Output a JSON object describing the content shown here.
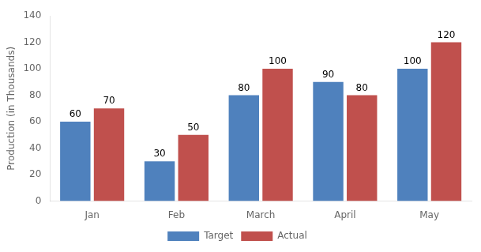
{
  "chart_data": {
    "type": "bar",
    "categories": [
      "Jan",
      "Feb",
      "March",
      "April",
      "May"
    ],
    "series": [
      {
        "name": "Target",
        "color": "#4F81BD",
        "values": [
          60,
          30,
          80,
          90,
          100
        ]
      },
      {
        "name": "Actual",
        "color": "#C0504D",
        "values": [
          70,
          50,
          100,
          80,
          120
        ]
      }
    ],
    "ylabel": "Production (in Thousands)",
    "ylim": [
      0,
      140
    ],
    "yticks": [
      0,
      20,
      40,
      60,
      80,
      100,
      120,
      140
    ],
    "grid": false,
    "legend": "bottom",
    "data_labels": true
  }
}
